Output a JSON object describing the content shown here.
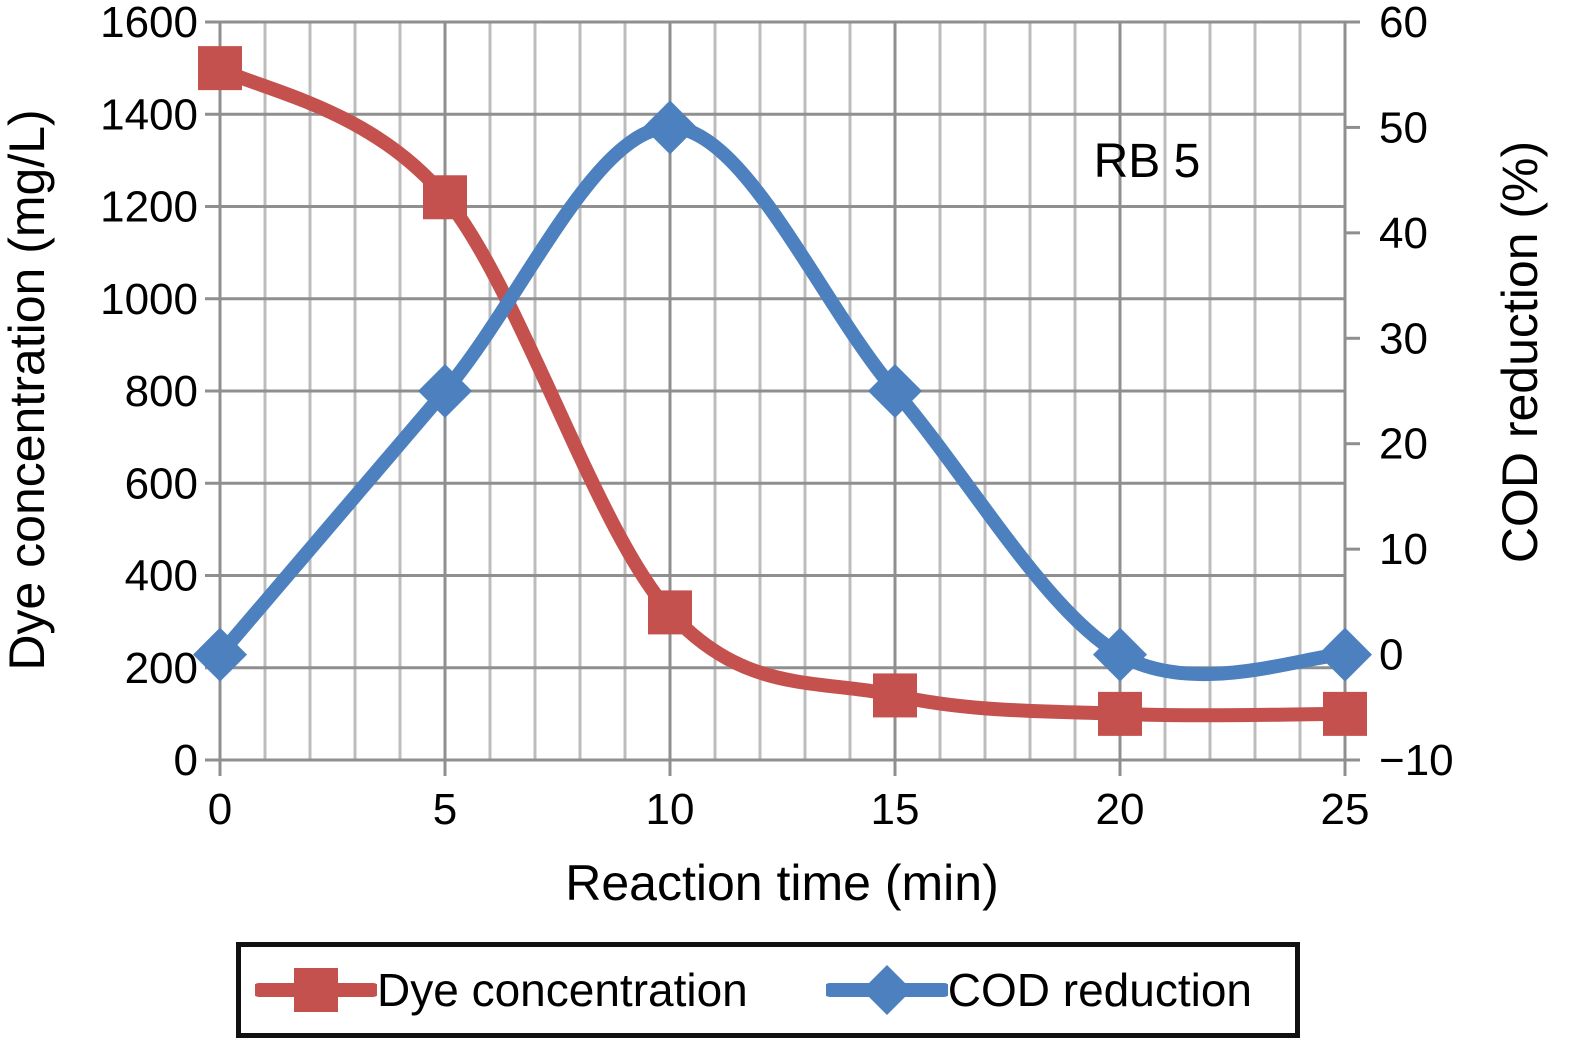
{
  "chart_data": {
    "type": "line",
    "annotation": "RB 5",
    "xlabel": "Reaction time (min)",
    "x": [
      0,
      5,
      10,
      15,
      20,
      25
    ],
    "xlim": [
      0,
      25
    ],
    "x_ticks": [
      0,
      5,
      10,
      15,
      20,
      25
    ],
    "left_axis": {
      "label": "Dye concentration (mg/L)",
      "lim": [
        0,
        1600
      ],
      "ticks": [
        0,
        200,
        400,
        600,
        800,
        1000,
        1200,
        1400,
        1600
      ]
    },
    "right_axis": {
      "label": "COD reduction (%)",
      "lim": [
        -10,
        60
      ],
      "ticks": [
        -10,
        0,
        10,
        20,
        30,
        40,
        50,
        60
      ]
    },
    "series": [
      {
        "name": "Dye concentration",
        "axis": "left",
        "color": "#c4514d",
        "marker": "square",
        "values": [
          1500,
          1220,
          320,
          140,
          100,
          100
        ]
      },
      {
        "name": "COD reduction",
        "axis": "right",
        "color": "#4d80bf",
        "marker": "diamond",
        "values": [
          0,
          25,
          50,
          25,
          0,
          0
        ]
      }
    ],
    "grid": {
      "on": true,
      "vertical_minor_step": 1,
      "vertical_major_step": 5,
      "horizontal_step": 200
    },
    "legend_position": "bottom",
    "line_smoothing": "spline"
  }
}
